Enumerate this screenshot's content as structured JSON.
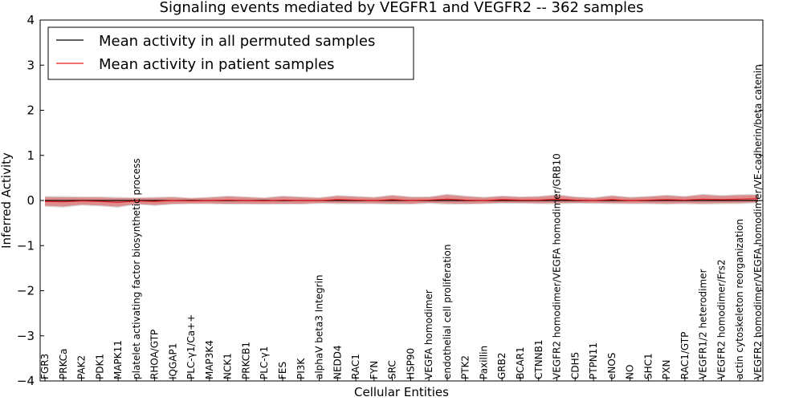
{
  "chart_data": {
    "type": "line",
    "title": "Signaling events mediated by VEGFR1 and VEGFR2 -- 362 samples",
    "xlabel": "Cellular Entities",
    "ylabel": "Inferred Activity",
    "ylim": [
      -4,
      4
    ],
    "yticks": [
      "−4",
      "−3",
      "−2",
      "−1",
      "0",
      "1",
      "2",
      "3",
      "4"
    ],
    "legend": {
      "position": "top-left",
      "entries": [
        {
          "label": "Mean activity in all permuted samples",
          "color": "#000000"
        },
        {
          "label": "Mean activity in patient samples",
          "color": "#e41a1c"
        }
      ]
    },
    "categories": [
      "FGR3",
      "PRKCa",
      "PAK2",
      "PDK1",
      "MAPK11",
      "platelet activating factor biosynthetic process",
      "RHOA/GTP",
      "IQGAP1",
      "PLC-γ1/Ca++",
      "MAP3K4",
      "NCK1",
      "PRKCB1",
      "PLC-γ1",
      "FES",
      "PI3K",
      "alphaV beta3 Integrin",
      "NEDD4",
      "RAC1",
      "FYN",
      "SRC",
      "HSP90",
      "VEGFA homodimer",
      "endothelial cell proliferation",
      "PTK2",
      "Paxillin",
      "GRB2",
      "BCAR1",
      "CTNNB1",
      "VEGFR2 homodimer/VEGFA homodimer/GRB10",
      "CDH5",
      "PTPN11",
      "eNOS",
      "NO",
      "SHC1",
      "PXN",
      "RAC1/GTP",
      "VEGFR1/2 heterodimer",
      "VEGFR2 homodimer/Frs2",
      "actin cytoskeleton reorganization",
      "VEGFR2 homodimer/VEGFA homodimer/VE-cadherin/beta catenin"
    ],
    "series": [
      {
        "name": "Mean activity in all permuted samples",
        "color": "#000000",
        "values": [
          0,
          0,
          0,
          0,
          0,
          0,
          0,
          0,
          0,
          0,
          0,
          0,
          0,
          0,
          0,
          0,
          0,
          0,
          0,
          0,
          0,
          0,
          0,
          0,
          0,
          0,
          0,
          0,
          0,
          0,
          0,
          0,
          0,
          0,
          0,
          0,
          0,
          0,
          0,
          0
        ]
      },
      {
        "name": "Mean activity in patient samples",
        "color": "#e41a1c",
        "values": [
          -0.02,
          -0.03,
          -0.01,
          -0.02,
          -0.04,
          -0.01,
          -0.02,
          0.0,
          -0.01,
          0.0,
          0.01,
          0.0,
          -0.01,
          0.01,
          0.0,
          0.0,
          0.02,
          0.01,
          0.0,
          0.02,
          0.0,
          0.01,
          0.03,
          0.01,
          0.0,
          0.02,
          0.01,
          0.01,
          0.03,
          0.01,
          0.0,
          0.02,
          0.0,
          0.01,
          0.02,
          0.01,
          0.03,
          0.02,
          0.03,
          0.04
        ],
        "band": [
          0.12,
          0.13,
          0.1,
          0.11,
          0.12,
          0.08,
          0.1,
          0.09,
          0.07,
          0.08,
          0.1,
          0.09,
          0.08,
          0.1,
          0.09,
          0.07,
          0.1,
          0.09,
          0.08,
          0.11,
          0.09,
          0.08,
          0.12,
          0.1,
          0.08,
          0.09,
          0.08,
          0.09,
          0.11,
          0.08,
          0.07,
          0.1,
          0.08,
          0.09,
          0.11,
          0.09,
          0.12,
          0.1,
          0.11,
          0.1
        ]
      }
    ]
  }
}
